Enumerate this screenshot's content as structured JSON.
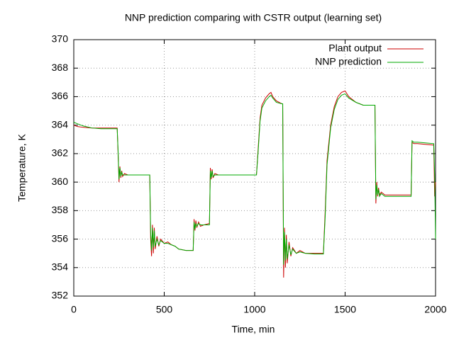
{
  "chart_data": {
    "type": "line",
    "title": "NNP prediction comparing with CSTR output (learning set)",
    "x_label": "Time, min",
    "y_label": "Temperature, K",
    "xlim": [
      0,
      2000
    ],
    "ylim": [
      352,
      370
    ],
    "xticks": [
      0,
      500,
      1000,
      1500,
      2000
    ],
    "yticks": [
      352,
      354,
      356,
      358,
      360,
      362,
      364,
      366,
      368,
      370
    ],
    "grid": true,
    "legend": "top-right",
    "x": [
      0,
      20,
      50,
      100,
      150,
      200,
      240,
      245,
      250,
      255,
      260,
      265,
      270,
      280,
      300,
      350,
      420,
      425,
      430,
      435,
      440,
      445,
      450,
      460,
      470,
      480,
      500,
      520,
      540,
      560,
      580,
      620,
      660,
      665,
      670,
      675,
      680,
      690,
      700,
      720,
      750,
      755,
      760,
      765,
      770,
      780,
      800,
      900,
      1010,
      1020,
      1030,
      1040,
      1060,
      1080,
      1090,
      1100,
      1120,
      1150,
      1155,
      1160,
      1165,
      1170,
      1175,
      1180,
      1190,
      1200,
      1210,
      1230,
      1250,
      1280,
      1330,
      1380,
      1390,
      1400,
      1420,
      1440,
      1460,
      1480,
      1500,
      1520,
      1560,
      1600,
      1665,
      1670,
      1675,
      1680,
      1685,
      1690,
      1700,
      1720,
      1800,
      1865,
      1870,
      1880,
      1900,
      1990,
      1995,
      2000
    ],
    "series": [
      {
        "name": "Plant output",
        "color": "#cc0000",
        "values": [
          364.0,
          363.9,
          363.85,
          363.8,
          363.8,
          363.8,
          363.8,
          362.0,
          360.0,
          361.1,
          360.3,
          360.8,
          360.4,
          360.6,
          360.5,
          360.5,
          360.5,
          356.0,
          354.8,
          357.0,
          355.0,
          356.8,
          355.3,
          356.2,
          355.5,
          356.0,
          355.7,
          355.8,
          355.6,
          355.5,
          355.3,
          355.2,
          355.2,
          357.4,
          356.6,
          357.3,
          356.8,
          357.2,
          356.9,
          357.0,
          357.1,
          361.0,
          360.2,
          360.9,
          360.3,
          360.6,
          360.5,
          360.5,
          360.5,
          362.5,
          364.5,
          365.4,
          365.9,
          366.2,
          366.3,
          366.0,
          365.7,
          365.5,
          365.5,
          353.3,
          356.8,
          354.0,
          356.3,
          354.3,
          355.8,
          354.8,
          355.4,
          355.0,
          355.2,
          355.0,
          355.0,
          355.0,
          358.0,
          361.5,
          364.0,
          365.3,
          366.0,
          366.3,
          366.4,
          366.0,
          365.6,
          365.4,
          365.4,
          358.5,
          360.0,
          359.0,
          359.6,
          359.1,
          359.3,
          359.1,
          359.1,
          359.1,
          362.8,
          362.7,
          362.7,
          362.6,
          359.0,
          360.0
        ]
      },
      {
        "name": "NNP prediction",
        "color": "#00aa00",
        "values": [
          364.2,
          364.1,
          363.95,
          363.8,
          363.75,
          363.75,
          363.75,
          362.2,
          360.2,
          361.0,
          360.4,
          360.7,
          360.5,
          360.5,
          360.5,
          360.5,
          360.5,
          356.5,
          355.2,
          356.8,
          355.4,
          356.6,
          355.5,
          356.0,
          355.6,
          355.9,
          355.7,
          355.7,
          355.6,
          355.5,
          355.3,
          355.2,
          355.2,
          357.2,
          356.7,
          357.1,
          356.9,
          357.1,
          357.0,
          357.0,
          357.0,
          360.8,
          360.3,
          360.8,
          360.4,
          360.5,
          360.5,
          360.5,
          360.5,
          362.3,
          364.3,
          365.2,
          365.7,
          366.0,
          366.1,
          365.9,
          365.6,
          365.5,
          365.5,
          354.2,
          356.5,
          354.5,
          356.0,
          354.6,
          355.6,
          354.9,
          355.3,
          355.0,
          355.1,
          355.0,
          354.95,
          354.95,
          357.6,
          361.2,
          363.8,
          365.1,
          365.8,
          366.1,
          366.2,
          365.9,
          365.6,
          365.4,
          365.4,
          358.8,
          359.8,
          359.1,
          359.5,
          359.0,
          359.2,
          359.0,
          359.0,
          359.0,
          362.9,
          362.8,
          362.8,
          362.7,
          360.5,
          356.0
        ]
      }
    ]
  }
}
